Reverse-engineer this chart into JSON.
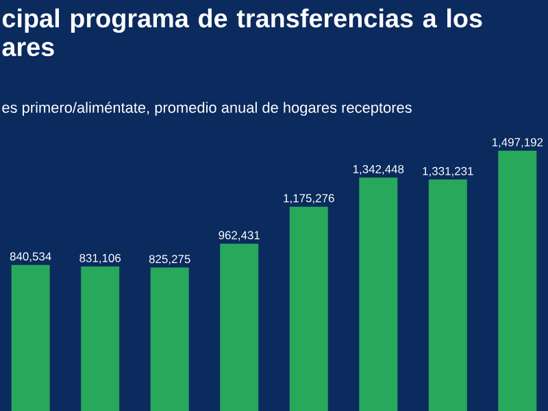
{
  "chart_data": {
    "type": "bar",
    "title": "cipal programa de transferencias a los ares",
    "subtitle": "es primero/aliméntate, promedio anual de hogares receptores",
    "categories": [
      null,
      null,
      null,
      null,
      null,
      null,
      null,
      null
    ],
    "values": [
      840534,
      831106,
      825275,
      962431,
      1175276,
      1342448,
      1331231,
      1497192
    ],
    "value_labels": [
      "840,534",
      "831,106",
      "825,275",
      "962,431",
      "1,175,276",
      "1,342,448",
      "1,331,231",
      "1,497,192"
    ],
    "color": "#27a85a"
  }
}
